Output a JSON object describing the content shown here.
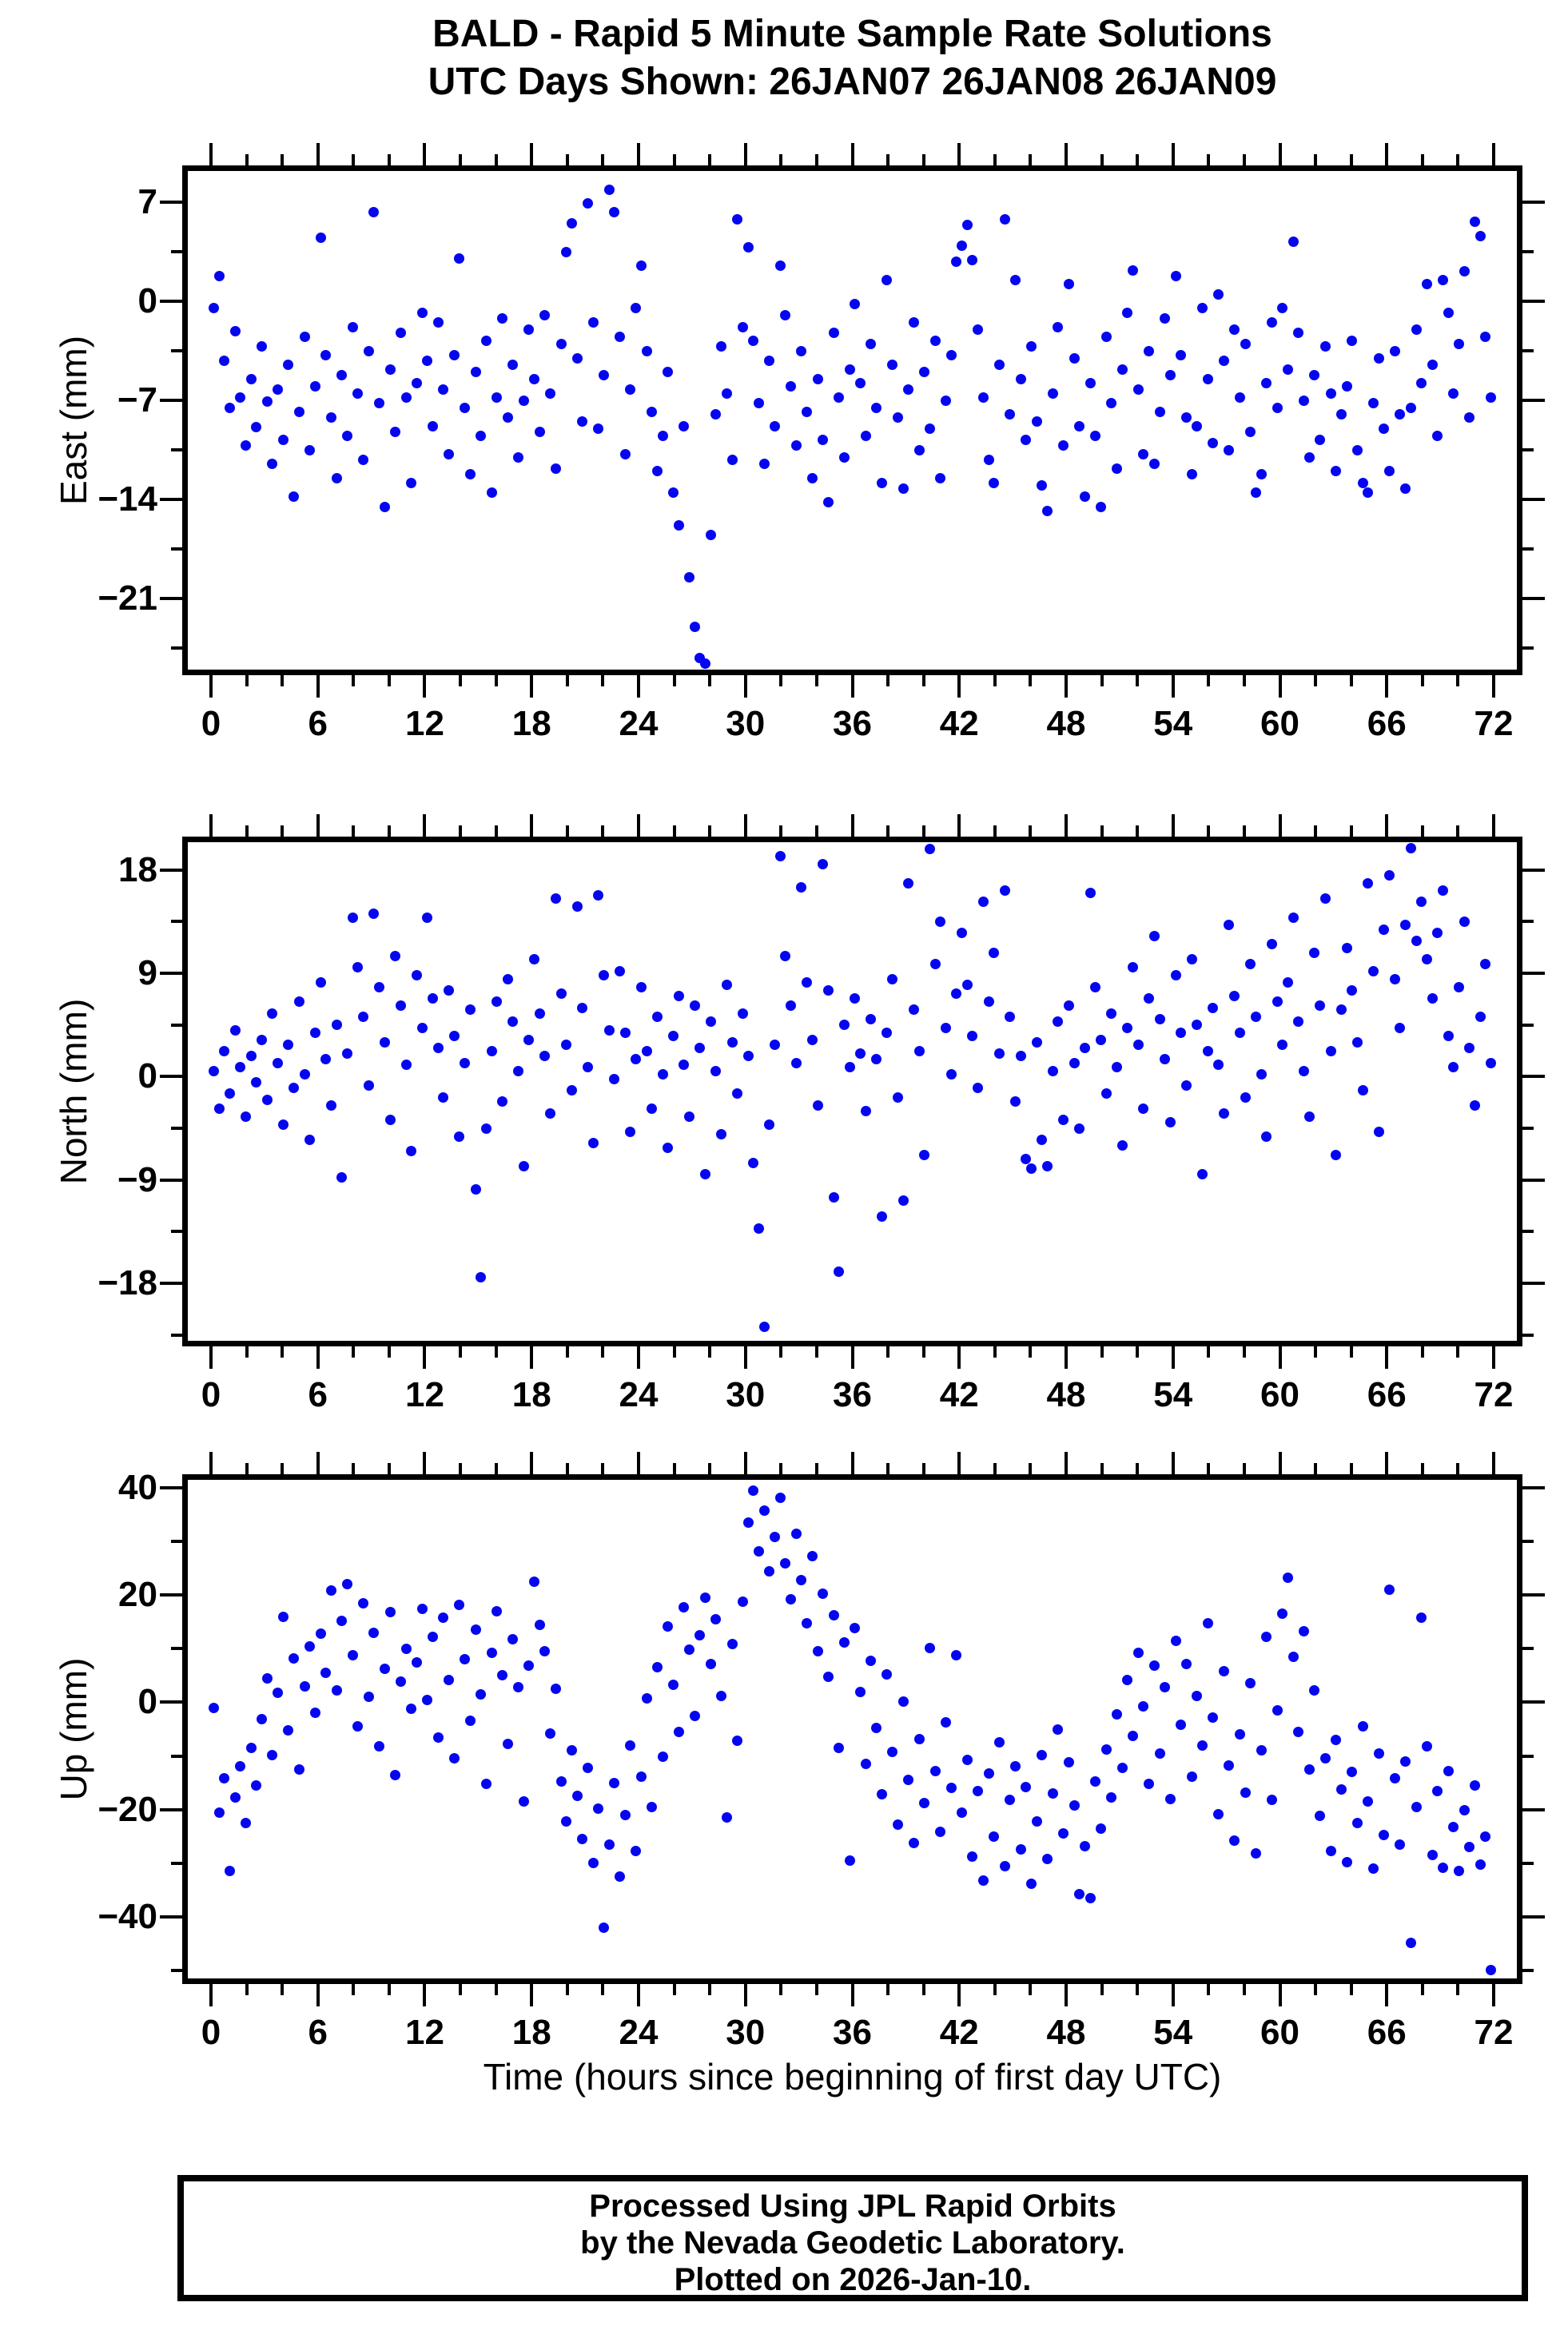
{
  "title": {
    "line1": "BALD - Rapid 5 Minute Sample Rate Solutions",
    "line2": "UTC Days Shown:  26JAN07 26JAN08 26JAN09"
  },
  "footer": {
    "line1": "Processed Using JPL Rapid Orbits",
    "line2": "by the Nevada Geodetic Laboratory.",
    "line3": "Plotted on 2026-Jan-10."
  },
  "colors": {
    "dot": "#0505F0",
    "axis": "#000000"
  },
  "x_axis": {
    "label": "Time (hours since beginning of first day UTC)",
    "xlim": [
      -1.3,
      73.3
    ],
    "major_ticks": [
      0,
      6,
      12,
      18,
      24,
      30,
      36,
      42,
      48,
      54,
      60,
      66,
      72
    ],
    "minor_step": 2,
    "major_step": 6
  },
  "chart_data": [
    {
      "type": "scatter",
      "name": "East",
      "ylabel": "East (mm)",
      "xlim": [
        -1.3,
        73.3
      ],
      "ylim": [
        -26.0,
        9.2
      ],
      "yticks_major": [
        7,
        0,
        -7,
        -14,
        -21
      ],
      "yticks_minor": [
        3.5,
        -3.5,
        -10.5,
        -17.5,
        -24.5
      ],
      "x0": 0.15,
      "dx": 0.3,
      "y": [
        -0.5,
        1.8,
        -4.2,
        -7.5,
        -2.1,
        -6.8,
        -10.2,
        -5.5,
        -8.9,
        -3.2,
        -7.1,
        -11.5,
        -6.2,
        -9.8,
        -4.5,
        -13.8,
        -7.8,
        -2.5,
        -10.5,
        -6.0,
        4.5,
        -3.8,
        -8.2,
        -12.5,
        -5.2,
        -9.5,
        -1.8,
        -6.5,
        -11.2,
        -3.5,
        6.3,
        -7.2,
        -14.5,
        -4.8,
        -9.2,
        -2.2,
        -6.8,
        -12.8,
        -5.8,
        -0.8,
        -4.2,
        -8.8,
        -1.5,
        -6.2,
        -10.8,
        -3.8,
        3.0,
        -7.5,
        -12.2,
        -5.0,
        -9.5,
        -2.8,
        -13.5,
        -6.8,
        -1.2,
        -8.2,
        -4.5,
        -11.0,
        -7.0,
        -2.0,
        -5.5,
        -9.2,
        -1.0,
        -6.5,
        -11.8,
        -3.0,
        3.5,
        5.5,
        -4.0,
        -8.5,
        6.9,
        -1.5,
        -9.0,
        -5.2,
        7.9,
        6.3,
        -2.5,
        -10.8,
        -6.2,
        -0.5,
        2.5,
        -3.5,
        -7.8,
        -12.0,
        -9.5,
        -5.0,
        -13.5,
        -15.8,
        -8.8,
        -19.5,
        -23.0,
        -25.2,
        -25.6,
        -16.5,
        -8.0,
        -3.2,
        -6.5,
        -11.2,
        5.8,
        -1.8,
        3.8,
        -2.8,
        -7.2,
        -11.5,
        -4.2,
        -8.8,
        2.5,
        -1.0,
        -6.0,
        -10.2,
        -3.5,
        -7.8,
        -12.5,
        -5.5,
        -9.8,
        -14.2,
        -2.2,
        -6.8,
        -11.0,
        -4.8,
        -0.2,
        -5.8,
        -9.5,
        -3.0,
        -7.5,
        -12.8,
        1.5,
        -4.5,
        -8.2,
        -13.2,
        -6.2,
        -1.5,
        -10.5,
        -5.0,
        -9.0,
        -2.8,
        -12.5,
        -7.0,
        -3.8,
        2.8,
        3.9,
        5.4,
        2.9,
        -2.0,
        -6.8,
        -11.2,
        -12.8,
        -4.5,
        5.8,
        -8.0,
        1.5,
        -5.5,
        -9.8,
        -3.2,
        -8.5,
        -13.0,
        -14.8,
        -6.5,
        -1.8,
        -10.2,
        1.2,
        -4.0,
        -8.8,
        -13.8,
        -5.8,
        -9.5,
        -14.5,
        -2.5,
        -7.2,
        -11.8,
        -4.8,
        -0.8,
        2.2,
        -6.2,
        -10.8,
        -3.5,
        -11.5,
        -7.8,
        -1.2,
        -5.2,
        1.8,
        -3.8,
        -8.2,
        -12.2,
        -8.8,
        -0.5,
        -5.5,
        -10.0,
        0.5,
        -4.2,
        -10.5,
        -2.0,
        -6.8,
        -3.0,
        -9.2,
        -13.5,
        -12.2,
        -5.8,
        -1.5,
        -7.5,
        -0.5,
        -4.8,
        4.2,
        -2.2,
        -7.0,
        -11.0,
        -5.2,
        -9.8,
        -3.2,
        -6.5,
        -12.0,
        -8.0,
        -6.0,
        -2.8,
        -10.5,
        -12.8,
        -13.5,
        -7.2,
        -4.0,
        -9.0,
        -12.0,
        -3.5,
        -8.0,
        -13.2,
        -7.5,
        -2.0,
        -5.8,
        1.2,
        -4.5,
        -9.5,
        1.5,
        -0.8,
        -6.5,
        -3.0,
        2.1,
        -8.2,
        5.6,
        4.6,
        -2.5,
        -6.8
      ]
    },
    {
      "type": "scatter",
      "name": "North",
      "ylabel": "North (mm)",
      "xlim": [
        -1.3,
        73.3
      ],
      "ylim": [
        -23.0,
        20.4
      ],
      "yticks_major": [
        18,
        9,
        0,
        -9,
        -18
      ],
      "yticks_minor": [
        13.5,
        4.5,
        -4.5,
        -13.5,
        -22.5
      ],
      "x0": 0.15,
      "dx": 0.3,
      "y": [
        0.5,
        -2.8,
        2.2,
        -1.5,
        4.0,
        0.8,
        -3.5,
        1.8,
        -0.5,
        3.2,
        -2.0,
        5.5,
        1.2,
        -4.2,
        2.8,
        -1.0,
        6.5,
        0.2,
        -5.5,
        3.8,
        8.2,
        1.5,
        -2.5,
        4.5,
        -8.8,
        2.0,
        13.8,
        9.5,
        5.2,
        -0.8,
        14.2,
        7.8,
        3.0,
        -3.8,
        10.5,
        6.2,
        1.0,
        -6.5,
        8.8,
        4.2,
        13.8,
        6.8,
        2.5,
        -1.8,
        7.5,
        3.5,
        -5.2,
        1.2,
        5.8,
        -9.8,
        -17.5,
        -4.5,
        2.2,
        6.5,
        -2.2,
        8.5,
        4.8,
        0.5,
        -7.8,
        3.2,
        10.2,
        5.5,
        1.8,
        -3.2,
        15.5,
        7.2,
        2.8,
        -1.2,
        14.8,
        6.0,
        0.8,
        -5.8,
        15.8,
        8.8,
        4.0,
        -0.2,
        9.2,
        3.8,
        -4.8,
        1.5,
        7.8,
        2.2,
        -2.8,
        5.2,
        0.2,
        -6.2,
        3.5,
        7.0,
        1.0,
        -3.5,
        6.2,
        2.5,
        -8.5,
        4.8,
        0.5,
        -5.0,
        8.0,
        3.0,
        -1.5,
        5.5,
        1.8,
        -7.5,
        -13.2,
        -21.8,
        -4.2,
        2.8,
        19.2,
        10.5,
        6.2,
        1.2,
        16.5,
        8.2,
        3.2,
        -2.5,
        18.5,
        7.5,
        -10.5,
        -17.0,
        4.5,
        0.8,
        6.8,
        2.0,
        -3.0,
        5.0,
        1.5,
        -12.2,
        3.8,
        8.5,
        -1.8,
        -10.8,
        16.8,
        5.8,
        2.2,
        -6.8,
        19.8,
        9.8,
        13.5,
        4.2,
        0.2,
        7.2,
        12.5,
        8.0,
        3.5,
        -1.0,
        15.2,
        6.5,
        10.8,
        2.0,
        16.2,
        5.2,
        -2.2,
        1.8,
        -7.2,
        -8.0,
        3.0,
        -5.5,
        -7.8,
        0.5,
        4.8,
        -3.8,
        6.2,
        1.2,
        -4.5,
        2.5,
        16.0,
        7.8,
        3.2,
        -1.5,
        5.5,
        0.8,
        -6.0,
        4.2,
        9.5,
        2.8,
        -2.8,
        6.8,
        12.2,
        5.0,
        1.5,
        -4.0,
        8.8,
        3.8,
        -0.8,
        10.2,
        4.5,
        -8.5,
        2.2,
        6.0,
        1.0,
        -3.2,
        13.2,
        7.0,
        3.8,
        -1.8,
        9.8,
        5.2,
        0.2,
        -5.2,
        11.5,
        6.5,
        2.8,
        8.2,
        13.8,
        4.8,
        0.5,
        -3.5,
        10.8,
        6.2,
        15.5,
        2.2,
        -6.8,
        5.8,
        11.2,
        7.5,
        3.0,
        -1.2,
        16.8,
        9.2,
        -4.8,
        12.8,
        17.5,
        8.5,
        4.2,
        13.2,
        19.9,
        11.8,
        15.2,
        10.2,
        6.8,
        12.5,
        16.2,
        3.5,
        0.8,
        7.8,
        13.5,
        2.5,
        -2.5,
        5.2,
        9.8,
        1.2
      ]
    },
    {
      "type": "scatter",
      "name": "Up",
      "ylabel": "Up (mm)",
      "xlim": [
        -1.3,
        73.3
      ],
      "ylim": [
        -51.5,
        41.5
      ],
      "yticks_major": [
        40,
        20,
        0,
        -20,
        -40
      ],
      "yticks_minor": [
        30,
        10,
        -10,
        -30,
        -50
      ],
      "x0": 0.15,
      "dx": 0.3,
      "y": [
        -1.0,
        -20.5,
        -14.2,
        -31.5,
        -17.8,
        -12.0,
        -22.5,
        -8.5,
        -15.5,
        -3.2,
        4.5,
        -9.8,
        1.8,
        16.0,
        -5.2,
        8.2,
        -12.5,
        3.0,
        10.5,
        -2.0,
        12.8,
        5.5,
        20.8,
        2.2,
        15.2,
        22.0,
        8.8,
        -4.5,
        18.5,
        1.0,
        13.0,
        -8.2,
        6.2,
        16.8,
        -13.5,
        3.8,
        10.0,
        -1.2,
        7.5,
        17.5,
        0.5,
        12.2,
        -6.5,
        15.8,
        4.2,
        -10.5,
        18.2,
        8.0,
        -3.5,
        13.5,
        1.5,
        -15.2,
        9.2,
        17.0,
        5.0,
        -7.8,
        11.8,
        2.8,
        -18.5,
        6.8,
        22.5,
        14.5,
        9.5,
        -5.8,
        2.5,
        -14.8,
        -22.2,
        -9.0,
        -17.5,
        -25.5,
        -12.2,
        -30.0,
        -19.8,
        -42.0,
        -26.5,
        -15.0,
        -32.5,
        -21.0,
        -8.0,
        -27.8,
        -13.8,
        0.8,
        -19.5,
        6.5,
        -10.2,
        14.2,
        3.2,
        -5.5,
        17.8,
        9.8,
        -2.5,
        12.5,
        19.5,
        7.2,
        15.5,
        1.2,
        -21.5,
        10.8,
        -7.2,
        18.8,
        33.5,
        39.5,
        28.2,
        35.8,
        24.5,
        30.8,
        38.2,
        26.0,
        19.2,
        31.5,
        22.8,
        14.8,
        27.2,
        9.5,
        20.2,
        4.8,
        16.2,
        -8.5,
        11.2,
        -29.5,
        13.8,
        2.0,
        -11.5,
        7.8,
        -4.8,
        -17.2,
        5.2,
        -9.2,
        -22.8,
        0.2,
        -14.5,
        -26.2,
        -6.8,
        -18.8,
        10.2,
        -12.8,
        -24.2,
        -3.8,
        -16.0,
        8.8,
        -20.5,
        -10.8,
        -28.8,
        -16.5,
        -33.2,
        -13.2,
        -25.0,
        -7.5,
        -30.5,
        -18.2,
        -12.0,
        -27.5,
        -15.8,
        -33.8,
        -22.2,
        -9.8,
        -29.2,
        -17.0,
        -5.0,
        -24.5,
        -11.2,
        -19.2,
        -35.8,
        -26.8,
        -36.5,
        -14.8,
        -23.5,
        -8.8,
        -17.8,
        -2.2,
        -12.2,
        4.2,
        -6.2,
        9.2,
        -0.8,
        -15.2,
        6.8,
        -9.5,
        2.8,
        -18.0,
        11.5,
        -4.2,
        7.2,
        -13.8,
        1.2,
        -8.0,
        14.8,
        -2.8,
        -20.8,
        5.8,
        -11.8,
        -25.8,
        -6.0,
        -16.8,
        3.5,
        -28.2,
        -9.0,
        12.2,
        -18.2,
        -1.5,
        16.5,
        23.2,
        8.5,
        -5.5,
        13.2,
        -12.5,
        2.2,
        -21.2,
        -10.5,
        -27.8,
        -7.0,
        -16.2,
        -29.8,
        -13.0,
        -22.5,
        -4.5,
        -18.5,
        -31.0,
        -9.5,
        -24.8,
        21.0,
        -14.2,
        -26.5,
        -11.0,
        -44.8,
        -19.5,
        15.8,
        -8.2,
        -28.5,
        -16.5,
        -30.8,
        -12.8,
        -23.2,
        -31.5,
        -20.2,
        -27.0,
        -15.5,
        -30.2,
        -25.0,
        -50.0
      ]
    }
  ]
}
